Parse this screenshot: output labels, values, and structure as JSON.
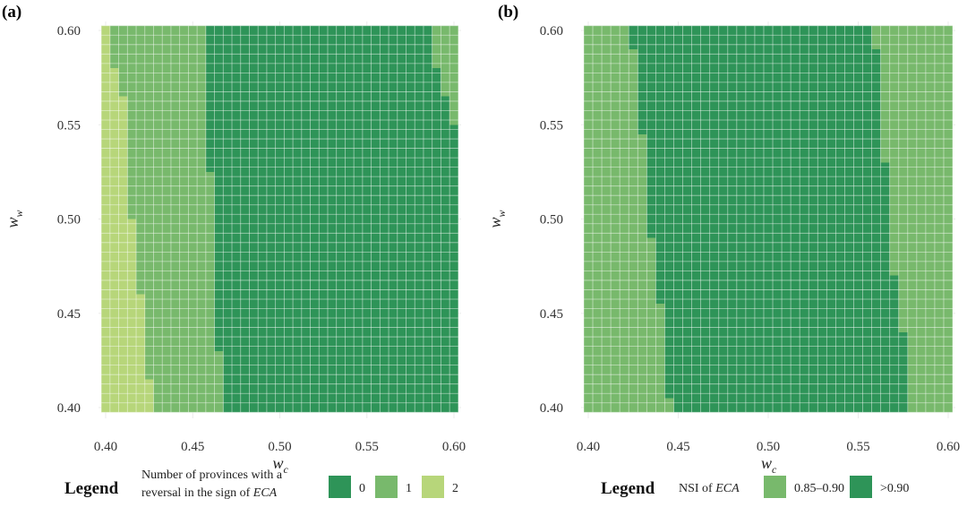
{
  "colors": {
    "dark": "#2e9458",
    "medium": "#78b96c",
    "light": "#b7d67a",
    "grid": "#ebebeb"
  },
  "chart_data": [
    {
      "panel_label": "(a)",
      "type": "heatmap",
      "xlabel": {
        "main": "w",
        "sub": "c"
      },
      "ylabel": {
        "main": "w",
        "sub": "w"
      },
      "xlim": [
        0.4,
        0.6
      ],
      "ylim": [
        0.4,
        0.6
      ],
      "x_ticks": [
        "0.40",
        "0.45",
        "0.50",
        "0.55",
        "0.60"
      ],
      "y_ticks": [
        "0.40",
        "0.45",
        "0.50",
        "0.55",
        "0.60"
      ],
      "grid_step": 0.005,
      "legend": {
        "title": "Legend",
        "description_line1": "Number of provinces with a",
        "description_line2_prefix": "reversal in the sign of ",
        "description_line2_emph": "ECA",
        "keys": [
          {
            "label": "0",
            "color": "dark"
          },
          {
            "label": "1",
            "color": "medium"
          },
          {
            "label": "2",
            "color": "light"
          }
        ]
      },
      "regions": {
        "description": "per w_w row: w_c < light_until → 2 provinces; < medium_until → 1; < dark_until → 0; otherwise 1",
        "rows": [
          {
            "ww_from": 0.4,
            "ww_to": 0.415,
            "light_until": 0.4275,
            "medium_until": 0.4675,
            "dark_until": 0.6025
          },
          {
            "ww_from": 0.415,
            "ww_to": 0.43,
            "light_until": 0.4225,
            "medium_until": 0.4675,
            "dark_until": 0.6025
          },
          {
            "ww_from": 0.43,
            "ww_to": 0.46,
            "light_until": 0.4225,
            "medium_until": 0.4625,
            "dark_until": 0.6025
          },
          {
            "ww_from": 0.46,
            "ww_to": 0.5,
            "light_until": 0.4175,
            "medium_until": 0.4625,
            "dark_until": 0.6025
          },
          {
            "ww_from": 0.5,
            "ww_to": 0.525,
            "light_until": 0.4125,
            "medium_until": 0.4625,
            "dark_until": 0.6025
          },
          {
            "ww_from": 0.525,
            "ww_to": 0.55,
            "light_until": 0.4125,
            "medium_until": 0.4575,
            "dark_until": 0.6025
          },
          {
            "ww_from": 0.55,
            "ww_to": 0.565,
            "light_until": 0.4125,
            "medium_until": 0.4575,
            "dark_until": 0.5975
          },
          {
            "ww_from": 0.565,
            "ww_to": 0.58,
            "light_until": 0.4075,
            "medium_until": 0.4575,
            "dark_until": 0.5925
          },
          {
            "ww_from": 0.58,
            "ww_to": 0.6025,
            "light_until": 0.4025,
            "medium_until": 0.4575,
            "dark_until": 0.5875
          }
        ]
      }
    },
    {
      "panel_label": "(b)",
      "type": "heatmap",
      "xlabel": {
        "main": "w",
        "sub": "c"
      },
      "ylabel": {
        "main": "w",
        "sub": "w"
      },
      "xlim": [
        0.4,
        0.6
      ],
      "ylim": [
        0.4,
        0.6
      ],
      "x_ticks": [
        "0.40",
        "0.45",
        "0.50",
        "0.55",
        "0.60"
      ],
      "y_ticks": [
        "0.40",
        "0.45",
        "0.50",
        "0.55",
        "0.60"
      ],
      "grid_step": 0.005,
      "legend": {
        "title": "Legend",
        "description_line1": "",
        "description_line2_prefix": "NSI of ",
        "description_line2_emph": "ECA",
        "keys": [
          {
            "label": "0.85–0.90",
            "color": "medium"
          },
          {
            "label": ">0.90",
            "color": "dark"
          }
        ]
      },
      "regions": {
        "description": "per w_w row: dark (>0.90) for dark_from ≤ w_c < dark_until, medium (0.85–0.90) otherwise",
        "rows": [
          {
            "ww_from": 0.4,
            "ww_to": 0.405,
            "dark_from": 0.4475,
            "dark_until": 0.5775
          },
          {
            "ww_from": 0.405,
            "ww_to": 0.44,
            "dark_from": 0.4425,
            "dark_until": 0.5775
          },
          {
            "ww_from": 0.44,
            "ww_to": 0.455,
            "dark_from": 0.4425,
            "dark_until": 0.5725
          },
          {
            "ww_from": 0.455,
            "ww_to": 0.47,
            "dark_from": 0.4375,
            "dark_until": 0.5725
          },
          {
            "ww_from": 0.47,
            "ww_to": 0.49,
            "dark_from": 0.4375,
            "dark_until": 0.5675
          },
          {
            "ww_from": 0.49,
            "ww_to": 0.505,
            "dark_from": 0.4325,
            "dark_until": 0.5675
          },
          {
            "ww_from": 0.505,
            "ww_to": 0.52,
            "dark_from": 0.4325,
            "dark_until": 0.5675
          },
          {
            "ww_from": 0.52,
            "ww_to": 0.53,
            "dark_from": 0.4325,
            "dark_until": 0.5675
          },
          {
            "ww_from": 0.53,
            "ww_to": 0.545,
            "dark_from": 0.4325,
            "dark_until": 0.5625
          },
          {
            "ww_from": 0.545,
            "ww_to": 0.57,
            "dark_from": 0.4275,
            "dark_until": 0.5625
          },
          {
            "ww_from": 0.57,
            "ww_to": 0.59,
            "dark_from": 0.4275,
            "dark_until": 0.5625
          },
          {
            "ww_from": 0.59,
            "ww_to": 0.6025,
            "dark_from": 0.4225,
            "dark_until": 0.5575
          }
        ]
      }
    }
  ]
}
